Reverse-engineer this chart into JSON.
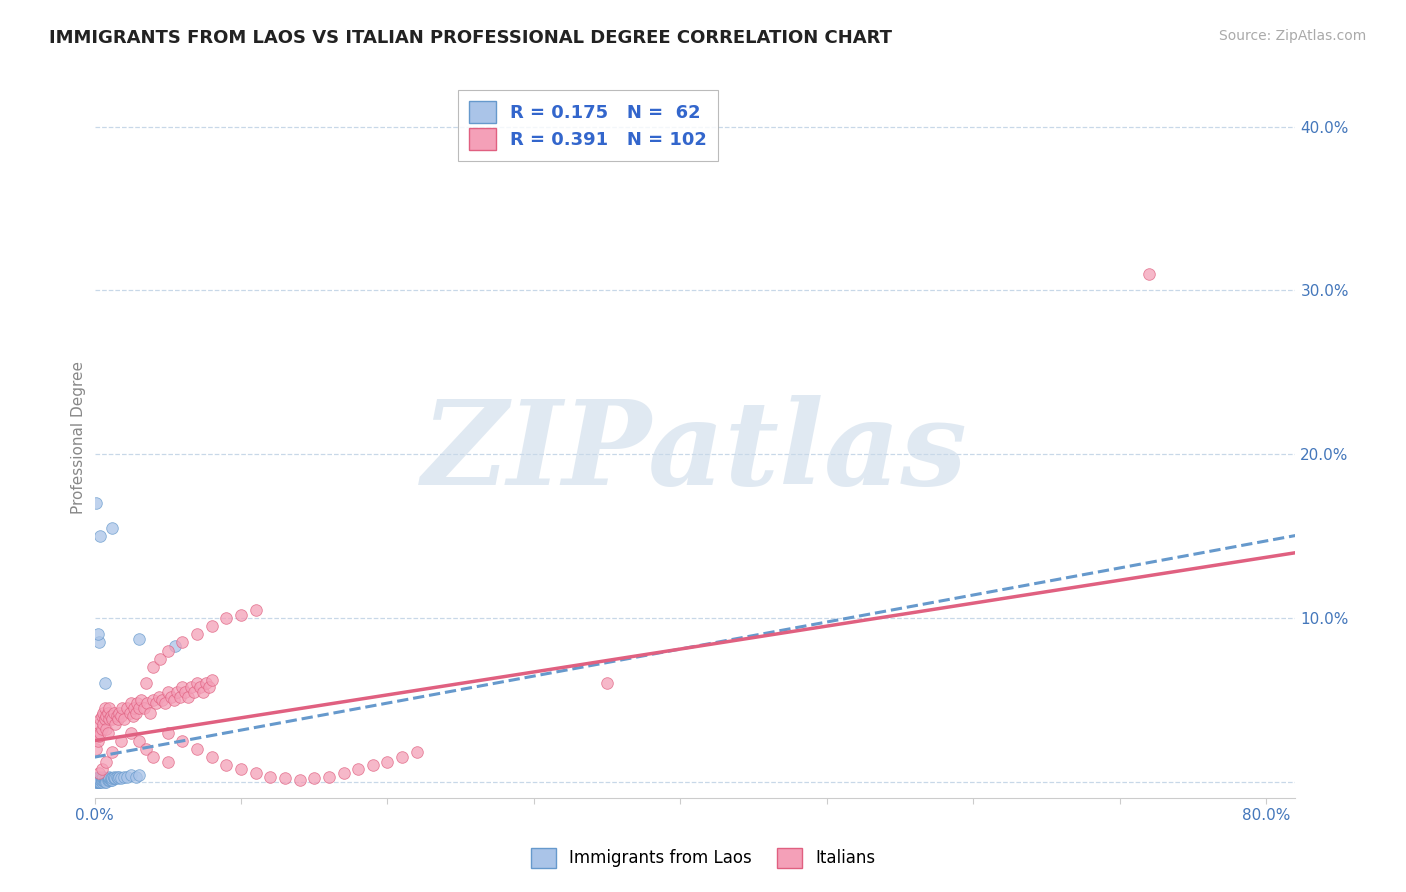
{
  "title": "IMMIGRANTS FROM LAOS VS ITALIAN PROFESSIONAL DEGREE CORRELATION CHART",
  "source_text": "Source: ZipAtlas.com",
  "ylabel": "Professional Degree",
  "xlim": [
    0.0,
    0.82
  ],
  "ylim": [
    -0.01,
    0.43
  ],
  "xtick_vals": [
    0.0,
    0.1,
    0.2,
    0.3,
    0.4,
    0.5,
    0.6,
    0.7,
    0.8
  ],
  "ytick_vals": [
    0.0,
    0.1,
    0.2,
    0.3,
    0.4
  ],
  "background_color": "#ffffff",
  "grid_color": "#c8d8e8",
  "watermark_text": "ZIPatlas",
  "watermark_color": "#c8d8e8",
  "label_color": "#4477bb",
  "series": [
    {
      "label": "Immigrants from Laos",
      "R": 0.175,
      "N": 62,
      "face_color": "#aac4e8",
      "edge_color": "#6699cc",
      "marker_size": 70,
      "trend_color": "#6699cc",
      "trend_style": "--",
      "trend_lw": 2.2,
      "x": [
        0.001,
        0.001,
        0.001,
        0.001,
        0.001,
        0.002,
        0.002,
        0.002,
        0.002,
        0.002,
        0.002,
        0.003,
        0.003,
        0.003,
        0.003,
        0.003,
        0.004,
        0.004,
        0.004,
        0.004,
        0.005,
        0.005,
        0.005,
        0.005,
        0.006,
        0.006,
        0.006,
        0.007,
        0.007,
        0.007,
        0.008,
        0.008,
        0.008,
        0.009,
        0.009,
        0.01,
        0.01,
        0.01,
        0.011,
        0.011,
        0.012,
        0.012,
        0.013,
        0.013,
        0.014,
        0.015,
        0.016,
        0.017,
        0.018,
        0.02,
        0.022,
        0.025,
        0.028,
        0.03,
        0.001,
        0.003,
        0.007,
        0.012,
        0.03,
        0.055,
        0.002,
        0.004
      ],
      "y": [
        0.0,
        0.001,
        0.002,
        0.0,
        0.001,
        0.0,
        0.001,
        0.002,
        0.0,
        0.001,
        0.002,
        0.0,
        0.001,
        0.002,
        0.003,
        0.0,
        0.001,
        0.002,
        0.0,
        0.001,
        0.001,
        0.002,
        0.0,
        0.001,
        0.001,
        0.002,
        0.003,
        0.001,
        0.002,
        0.0,
        0.001,
        0.002,
        0.0,
        0.001,
        0.002,
        0.001,
        0.002,
        0.003,
        0.001,
        0.002,
        0.001,
        0.002,
        0.002,
        0.003,
        0.002,
        0.003,
        0.002,
        0.003,
        0.002,
        0.003,
        0.003,
        0.004,
        0.003,
        0.004,
        0.17,
        0.085,
        0.06,
        0.155,
        0.087,
        0.083,
        0.09,
        0.15
      ]
    },
    {
      "label": "Italians",
      "R": 0.391,
      "N": 102,
      "face_color": "#f4a0b8",
      "edge_color": "#e06080",
      "marker_size": 70,
      "trend_color": "#e06080",
      "trend_style": "-",
      "trend_lw": 2.5,
      "x": [
        0.001,
        0.002,
        0.002,
        0.003,
        0.003,
        0.004,
        0.004,
        0.005,
        0.005,
        0.006,
        0.006,
        0.007,
        0.007,
        0.008,
        0.008,
        0.009,
        0.009,
        0.01,
        0.01,
        0.011,
        0.012,
        0.013,
        0.014,
        0.015,
        0.016,
        0.017,
        0.018,
        0.019,
        0.02,
        0.022,
        0.024,
        0.025,
        0.026,
        0.027,
        0.028,
        0.029,
        0.03,
        0.032,
        0.034,
        0.036,
        0.038,
        0.04,
        0.042,
        0.044,
        0.046,
        0.048,
        0.05,
        0.052,
        0.054,
        0.056,
        0.058,
        0.06,
        0.062,
        0.064,
        0.066,
        0.068,
        0.07,
        0.072,
        0.074,
        0.076,
        0.078,
        0.08,
        0.05,
        0.06,
        0.07,
        0.08,
        0.09,
        0.1,
        0.11,
        0.12,
        0.13,
        0.14,
        0.15,
        0.16,
        0.17,
        0.18,
        0.19,
        0.2,
        0.21,
        0.22,
        0.003,
        0.005,
        0.008,
        0.012,
        0.018,
        0.025,
        0.03,
        0.035,
        0.04,
        0.05,
        0.035,
        0.04,
        0.045,
        0.05,
        0.06,
        0.07,
        0.08,
        0.09,
        0.1,
        0.11,
        0.35,
        0.72
      ],
      "y": [
        0.02,
        0.025,
        0.03,
        0.028,
        0.035,
        0.03,
        0.038,
        0.032,
        0.04,
        0.035,
        0.042,
        0.038,
        0.045,
        0.04,
        0.032,
        0.042,
        0.03,
        0.038,
        0.045,
        0.04,
        0.038,
        0.042,
        0.035,
        0.04,
        0.038,
        0.042,
        0.04,
        0.045,
        0.038,
        0.045,
        0.042,
        0.048,
        0.04,
        0.045,
        0.042,
        0.048,
        0.045,
        0.05,
        0.045,
        0.048,
        0.042,
        0.05,
        0.048,
        0.052,
        0.05,
        0.048,
        0.055,
        0.052,
        0.05,
        0.055,
        0.052,
        0.058,
        0.055,
        0.052,
        0.058,
        0.055,
        0.06,
        0.058,
        0.055,
        0.06,
        0.058,
        0.062,
        0.03,
        0.025,
        0.02,
        0.015,
        0.01,
        0.008,
        0.005,
        0.003,
        0.002,
        0.001,
        0.002,
        0.003,
        0.005,
        0.008,
        0.01,
        0.012,
        0.015,
        0.018,
        0.005,
        0.008,
        0.012,
        0.018,
        0.025,
        0.03,
        0.025,
        0.02,
        0.015,
        0.012,
        0.06,
        0.07,
        0.075,
        0.08,
        0.085,
        0.09,
        0.095,
        0.1,
        0.102,
        0.105,
        0.06,
        0.31
      ]
    }
  ]
}
